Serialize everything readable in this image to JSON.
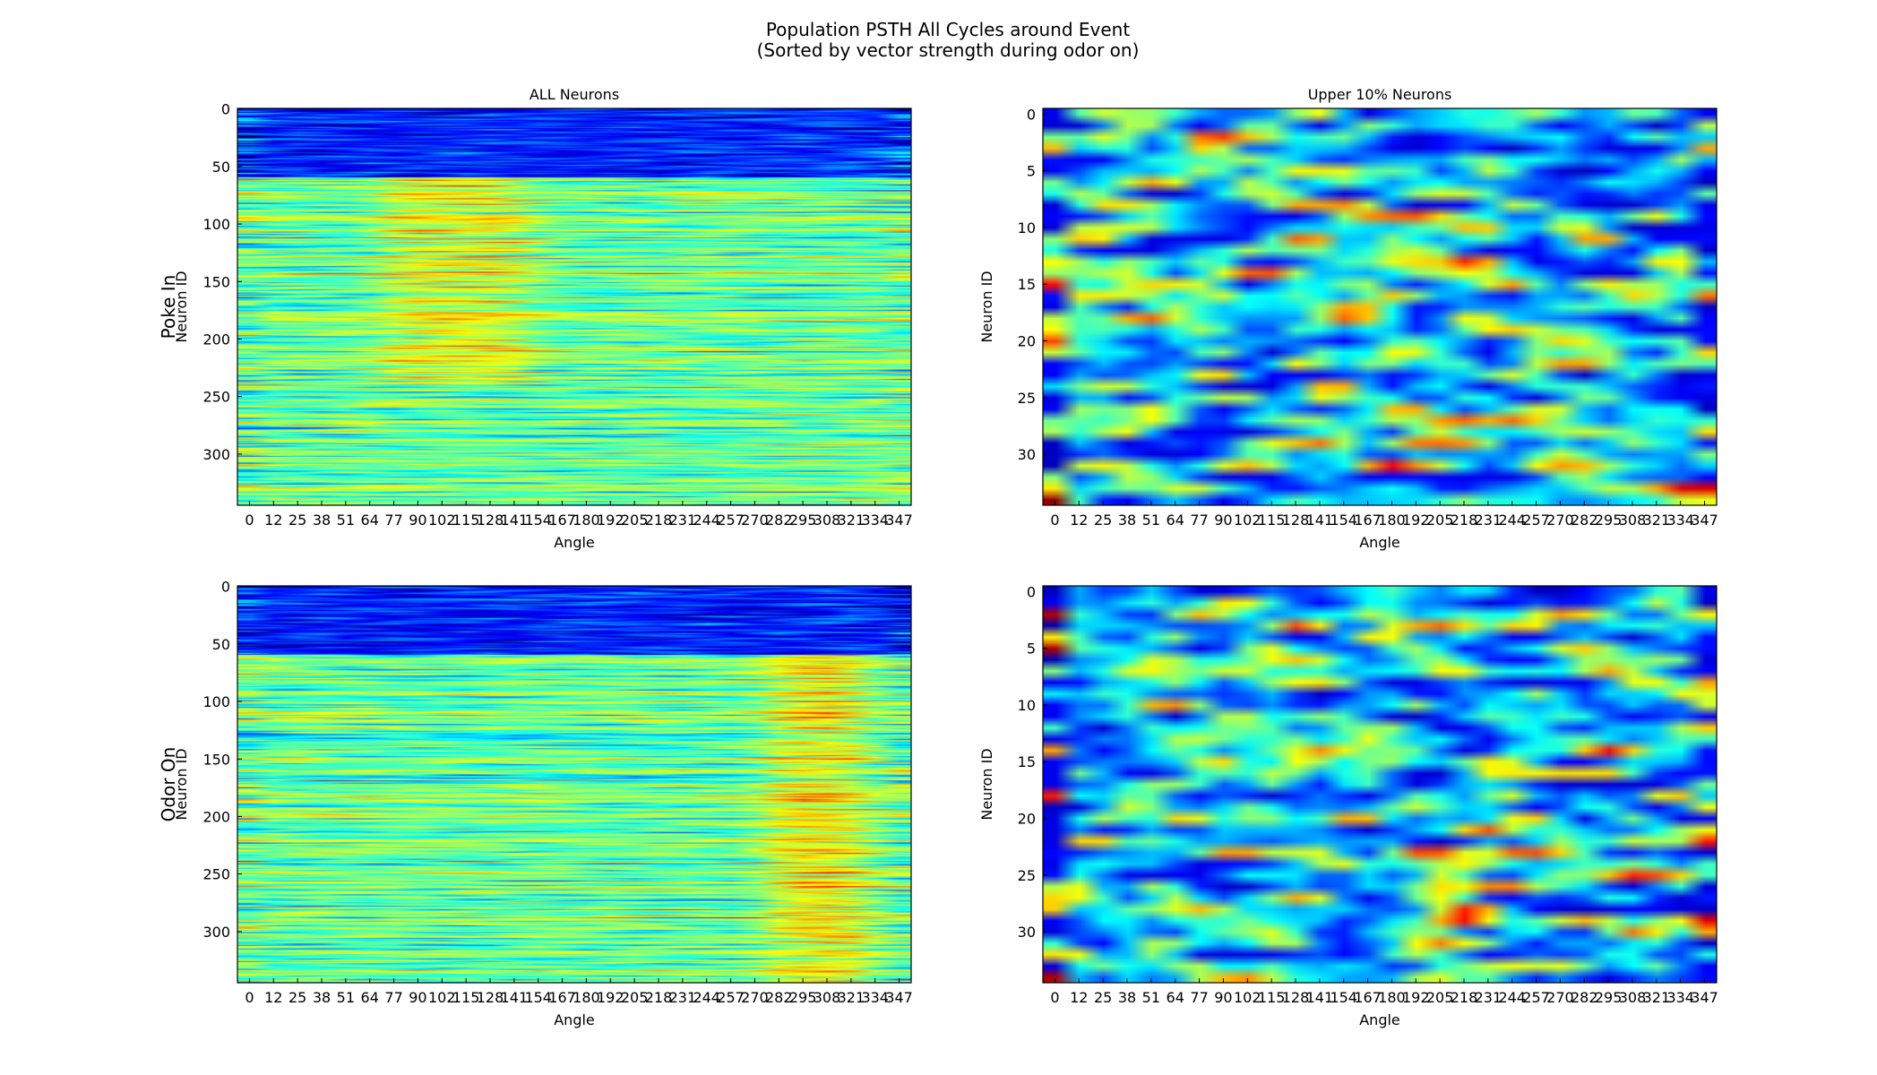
{
  "figure": {
    "title_line1": "Population PSTH All Cycles around Event",
    "title_line2": "(Sorted by vector strength during odor on)",
    "row_labels": [
      "Poke In",
      "Odor On"
    ],
    "colormap": "jet"
  },
  "chart_data": [
    {
      "type": "heatmap",
      "name": "poke-in-all-neurons",
      "title": "ALL Neurons",
      "row_label": "Poke In",
      "xlabel": "Angle",
      "ylabel": "Neuron ID",
      "x_ticks": [
        "0",
        "12",
        "25",
        "38",
        "51",
        "64",
        "77",
        "90",
        "102",
        "115",
        "128",
        "141",
        "154",
        "167",
        "180",
        "192",
        "205",
        "218",
        "231",
        "244",
        "257",
        "270",
        "282",
        "295",
        "308",
        "321",
        "334",
        "347"
      ],
      "y_ticks": [
        "0",
        "50",
        "100",
        "150",
        "200",
        "250",
        "300"
      ],
      "n_rows": 345,
      "n_cols": 28,
      "seed": 11,
      "profile": "all-poke"
    },
    {
      "type": "heatmap",
      "name": "poke-in-upper-neurons",
      "title": "Upper 10% Neurons",
      "row_label": "",
      "xlabel": "Angle",
      "ylabel": "Neuron ID",
      "x_ticks": [
        "0",
        "12",
        "25",
        "38",
        "51",
        "64",
        "77",
        "90",
        "102",
        "115",
        "128",
        "141",
        "154",
        "167",
        "180",
        "192",
        "205",
        "218",
        "231",
        "244",
        "257",
        "270",
        "282",
        "295",
        "308",
        "321",
        "334",
        "347"
      ],
      "y_ticks": [
        "0",
        "5",
        "10",
        "15",
        "20",
        "25",
        "30"
      ],
      "n_rows": 35,
      "n_cols": 28,
      "seed": 23,
      "profile": "upper-poke"
    },
    {
      "type": "heatmap",
      "name": "odor-on-all-neurons",
      "title": "",
      "row_label": "Odor On",
      "xlabel": "Angle",
      "ylabel": "Neuron ID",
      "x_ticks": [
        "0",
        "12",
        "25",
        "38",
        "51",
        "64",
        "77",
        "90",
        "102",
        "115",
        "128",
        "141",
        "154",
        "167",
        "180",
        "192",
        "205",
        "218",
        "231",
        "244",
        "257",
        "270",
        "282",
        "295",
        "308",
        "321",
        "334",
        "347"
      ],
      "y_ticks": [
        "0",
        "50",
        "100",
        "150",
        "200",
        "250",
        "300"
      ],
      "n_rows": 345,
      "n_cols": 28,
      "seed": 37,
      "profile": "all-odor"
    },
    {
      "type": "heatmap",
      "name": "odor-on-upper-neurons",
      "title": "",
      "row_label": "",
      "xlabel": "Angle",
      "ylabel": "Neuron ID",
      "x_ticks": [
        "0",
        "12",
        "25",
        "38",
        "51",
        "64",
        "77",
        "90",
        "102",
        "115",
        "128",
        "141",
        "154",
        "167",
        "180",
        "192",
        "205",
        "218",
        "231",
        "244",
        "257",
        "270",
        "282",
        "295",
        "308",
        "321",
        "334",
        "347"
      ],
      "y_ticks": [
        "0",
        "5",
        "10",
        "15",
        "20",
        "25",
        "30"
      ],
      "n_rows": 35,
      "n_cols": 28,
      "seed": 53,
      "profile": "upper-odor"
    }
  ]
}
